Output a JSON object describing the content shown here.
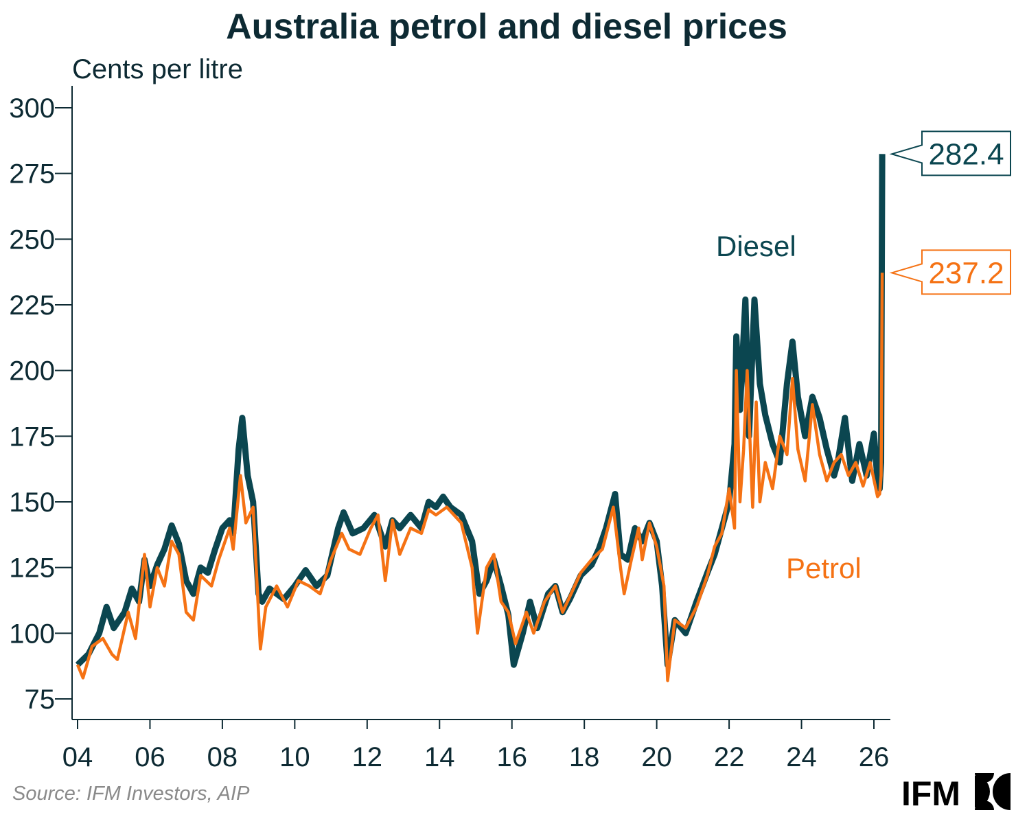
{
  "chart_data": {
    "type": "line",
    "title": "Australia petrol and diesel prices",
    "ylabel": "Cents per litre",
    "xlabel": "",
    "ylim": [
      70,
      307
    ],
    "xlim": [
      2003.85,
      2026.45
    ],
    "grid": false,
    "y_ticks": [
      75,
      100,
      125,
      150,
      175,
      200,
      225,
      250,
      275,
      300
    ],
    "x_ticks": [
      2004,
      2006,
      2008,
      2010,
      2012,
      2014,
      2016,
      2018,
      2020,
      2022,
      2024,
      2026
    ],
    "x_tick_labels": [
      "04",
      "06",
      "08",
      "10",
      "12",
      "14",
      "16",
      "18",
      "20",
      "22",
      "24",
      "26"
    ],
    "series": [
      {
        "name": "Diesel",
        "color": "#0b4650",
        "last_value_label": "282.4",
        "points": [
          [
            2004.0,
            88
          ],
          [
            2004.3,
            92
          ],
          [
            2004.6,
            100
          ],
          [
            2004.8,
            110
          ],
          [
            2005.0,
            102
          ],
          [
            2005.3,
            108
          ],
          [
            2005.5,
            117
          ],
          [
            2005.7,
            112
          ],
          [
            2005.85,
            128
          ],
          [
            2006.0,
            118
          ],
          [
            2006.2,
            126
          ],
          [
            2006.4,
            132
          ],
          [
            2006.6,
            141
          ],
          [
            2006.8,
            134
          ],
          [
            2007.0,
            120
          ],
          [
            2007.2,
            115
          ],
          [
            2007.4,
            125
          ],
          [
            2007.6,
            123
          ],
          [
            2007.8,
            132
          ],
          [
            2008.0,
            140
          ],
          [
            2008.2,
            143
          ],
          [
            2008.3,
            138
          ],
          [
            2008.45,
            170
          ],
          [
            2008.55,
            182
          ],
          [
            2008.7,
            160
          ],
          [
            2008.85,
            150
          ],
          [
            2009.0,
            115
          ],
          [
            2009.1,
            112
          ],
          [
            2009.3,
            117
          ],
          [
            2009.5,
            115
          ],
          [
            2009.7,
            113
          ],
          [
            2010.0,
            118
          ],
          [
            2010.3,
            124
          ],
          [
            2010.6,
            118
          ],
          [
            2010.9,
            122
          ],
          [
            2011.2,
            140
          ],
          [
            2011.35,
            146
          ],
          [
            2011.6,
            138
          ],
          [
            2011.9,
            140
          ],
          [
            2012.2,
            145
          ],
          [
            2012.5,
            133
          ],
          [
            2012.7,
            143
          ],
          [
            2012.9,
            140
          ],
          [
            2013.2,
            145
          ],
          [
            2013.5,
            140
          ],
          [
            2013.7,
            150
          ],
          [
            2013.9,
            148
          ],
          [
            2014.1,
            152
          ],
          [
            2014.3,
            148
          ],
          [
            2014.6,
            145
          ],
          [
            2014.9,
            135
          ],
          [
            2015.1,
            115
          ],
          [
            2015.3,
            120
          ],
          [
            2015.5,
            128
          ],
          [
            2015.7,
            118
          ],
          [
            2015.9,
            107
          ],
          [
            2016.05,
            88
          ],
          [
            2016.3,
            100
          ],
          [
            2016.5,
            112
          ],
          [
            2016.7,
            102
          ],
          [
            2017.0,
            115
          ],
          [
            2017.2,
            118
          ],
          [
            2017.4,
            108
          ],
          [
            2017.6,
            113
          ],
          [
            2017.9,
            122
          ],
          [
            2018.2,
            126
          ],
          [
            2018.4,
            132
          ],
          [
            2018.6,
            140
          ],
          [
            2018.85,
            153
          ],
          [
            2019.0,
            130
          ],
          [
            2019.2,
            128
          ],
          [
            2019.4,
            140
          ],
          [
            2019.6,
            135
          ],
          [
            2019.8,
            142
          ],
          [
            2020.0,
            135
          ],
          [
            2020.15,
            118
          ],
          [
            2020.3,
            88
          ],
          [
            2020.5,
            105
          ],
          [
            2020.8,
            100
          ],
          [
            2021.1,
            112
          ],
          [
            2021.4,
            123
          ],
          [
            2021.6,
            130
          ],
          [
            2021.8,
            140
          ],
          [
            2022.0,
            150
          ],
          [
            2022.15,
            172
          ],
          [
            2022.2,
            213
          ],
          [
            2022.3,
            185
          ],
          [
            2022.45,
            227
          ],
          [
            2022.55,
            175
          ],
          [
            2022.7,
            227
          ],
          [
            2022.85,
            195
          ],
          [
            2023.0,
            183
          ],
          [
            2023.2,
            172
          ],
          [
            2023.4,
            165
          ],
          [
            2023.6,
            195
          ],
          [
            2023.75,
            211
          ],
          [
            2023.9,
            190
          ],
          [
            2024.1,
            175
          ],
          [
            2024.3,
            190
          ],
          [
            2024.5,
            182
          ],
          [
            2024.7,
            170
          ],
          [
            2024.9,
            160
          ],
          [
            2025.0,
            165
          ],
          [
            2025.2,
            182
          ],
          [
            2025.4,
            158
          ],
          [
            2025.6,
            172
          ],
          [
            2025.8,
            160
          ],
          [
            2026.0,
            176
          ],
          [
            2026.1,
            158
          ],
          [
            2026.16,
            155
          ],
          [
            2026.2,
            165
          ],
          [
            2026.23,
            282.4
          ]
        ]
      },
      {
        "name": "Petrol",
        "color": "#f57214",
        "last_value_label": "237.2",
        "points": [
          [
            2004.0,
            88
          ],
          [
            2004.15,
            83
          ],
          [
            2004.4,
            95
          ],
          [
            2004.7,
            98
          ],
          [
            2004.95,
            92
          ],
          [
            2005.1,
            90
          ],
          [
            2005.4,
            108
          ],
          [
            2005.6,
            98
          ],
          [
            2005.85,
            130
          ],
          [
            2006.0,
            110
          ],
          [
            2006.2,
            125
          ],
          [
            2006.4,
            118
          ],
          [
            2006.6,
            135
          ],
          [
            2006.8,
            130
          ],
          [
            2007.0,
            108
          ],
          [
            2007.2,
            105
          ],
          [
            2007.4,
            122
          ],
          [
            2007.7,
            118
          ],
          [
            2007.9,
            128
          ],
          [
            2008.2,
            140
          ],
          [
            2008.3,
            132
          ],
          [
            2008.5,
            160
          ],
          [
            2008.65,
            142
          ],
          [
            2008.85,
            148
          ],
          [
            2009.05,
            94
          ],
          [
            2009.2,
            110
          ],
          [
            2009.5,
            118
          ],
          [
            2009.8,
            110
          ],
          [
            2010.1,
            120
          ],
          [
            2010.4,
            118
          ],
          [
            2010.7,
            115
          ],
          [
            2011.0,
            128
          ],
          [
            2011.3,
            138
          ],
          [
            2011.5,
            132
          ],
          [
            2011.8,
            130
          ],
          [
            2012.1,
            140
          ],
          [
            2012.3,
            145
          ],
          [
            2012.5,
            120
          ],
          [
            2012.7,
            143
          ],
          [
            2012.9,
            130
          ],
          [
            2013.2,
            140
          ],
          [
            2013.5,
            138
          ],
          [
            2013.7,
            147
          ],
          [
            2013.9,
            145
          ],
          [
            2014.2,
            148
          ],
          [
            2014.6,
            142
          ],
          [
            2014.9,
            125
          ],
          [
            2015.05,
            100
          ],
          [
            2015.3,
            125
          ],
          [
            2015.5,
            130
          ],
          [
            2015.7,
            112
          ],
          [
            2015.9,
            108
          ],
          [
            2016.1,
            96
          ],
          [
            2016.4,
            108
          ],
          [
            2016.6,
            100
          ],
          [
            2016.9,
            112
          ],
          [
            2017.2,
            118
          ],
          [
            2017.4,
            108
          ],
          [
            2017.7,
            117
          ],
          [
            2017.9,
            123
          ],
          [
            2018.2,
            128
          ],
          [
            2018.5,
            132
          ],
          [
            2018.8,
            148
          ],
          [
            2019.0,
            125
          ],
          [
            2019.1,
            115
          ],
          [
            2019.3,
            128
          ],
          [
            2019.5,
            140
          ],
          [
            2019.6,
            128
          ],
          [
            2019.8,
            142
          ],
          [
            2020.0,
            133
          ],
          [
            2020.2,
            118
          ],
          [
            2020.3,
            82
          ],
          [
            2020.5,
            105
          ],
          [
            2020.8,
            102
          ],
          [
            2021.1,
            110
          ],
          [
            2021.4,
            122
          ],
          [
            2021.6,
            133
          ],
          [
            2021.8,
            138
          ],
          [
            2022.0,
            155
          ],
          [
            2022.15,
            140
          ],
          [
            2022.2,
            200
          ],
          [
            2022.3,
            150
          ],
          [
            2022.4,
            170
          ],
          [
            2022.5,
            200
          ],
          [
            2022.65,
            148
          ],
          [
            2022.75,
            188
          ],
          [
            2022.85,
            150
          ],
          [
            2023.0,
            165
          ],
          [
            2023.2,
            155
          ],
          [
            2023.4,
            175
          ],
          [
            2023.6,
            168
          ],
          [
            2023.75,
            197
          ],
          [
            2023.9,
            170
          ],
          [
            2024.1,
            158
          ],
          [
            2024.3,
            187
          ],
          [
            2024.5,
            168
          ],
          [
            2024.7,
            158
          ],
          [
            2024.9,
            165
          ],
          [
            2025.1,
            168
          ],
          [
            2025.3,
            160
          ],
          [
            2025.5,
            165
          ],
          [
            2025.7,
            156
          ],
          [
            2025.9,
            165
          ],
          [
            2026.1,
            152
          ],
          [
            2026.16,
            153
          ],
          [
            2026.2,
            160
          ],
          [
            2026.23,
            237.2
          ]
        ]
      }
    ]
  },
  "source": "Source: IFM Investors, AIP",
  "logo_text": "IFM"
}
